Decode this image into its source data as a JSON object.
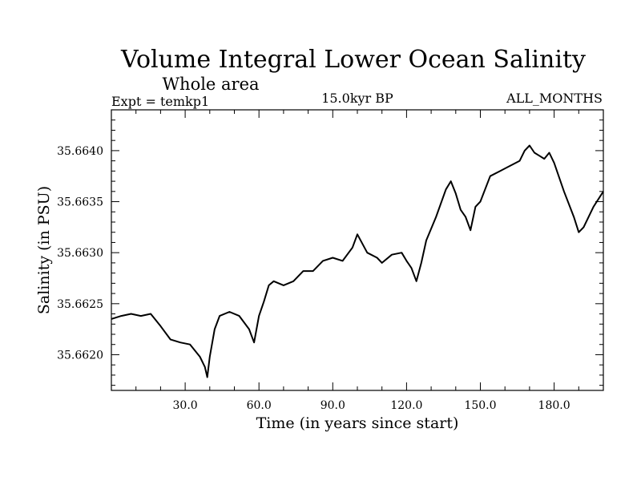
{
  "chart_data": {
    "type": "line",
    "title": "Volume Integral Lower Ocean Salinity",
    "subtitle": "Whole area",
    "experiment_label": "Expt = temkp1",
    "period_label": "15.0kyr BP",
    "months_label": "ALL_MONTHS",
    "xlabel": "Time (in years since start)",
    "ylabel": "Salinity (in PSU)",
    "xlim": [
      0,
      200
    ],
    "ylim": [
      35.66165,
      35.6644
    ],
    "xticks": [
      30,
      60,
      90,
      120,
      150,
      180
    ],
    "xtick_labels": [
      "30.0",
      "60.0",
      "90.0",
      "120.0",
      "150.0",
      "180.0"
    ],
    "yticks": [
      35.662,
      35.6625,
      35.663,
      35.6635,
      35.664
    ],
    "ytick_labels": [
      "35.6620",
      "35.6625",
      "35.6630",
      "35.6635",
      "35.6640"
    ],
    "grid": false,
    "series": [
      {
        "name": "Salinity",
        "color": "#000000",
        "x": [
          0,
          4,
          8,
          12,
          16,
          20,
          24,
          28,
          32,
          36,
          38,
          39,
          40,
          42,
          44,
          48,
          52,
          56,
          58,
          60,
          62,
          64,
          66,
          70,
          74,
          78,
          82,
          86,
          90,
          94,
          98,
          100,
          104,
          108,
          110,
          114,
          118,
          120,
          122,
          124,
          126,
          128,
          132,
          136,
          138,
          140,
          142,
          144,
          146,
          148,
          150,
          154,
          158,
          162,
          166,
          168,
          170,
          172,
          174,
          176,
          178,
          180,
          184,
          188,
          190,
          192,
          196,
          200
        ],
        "values": [
          35.66235,
          35.66238,
          35.6624,
          35.66238,
          35.6624,
          35.66228,
          35.66215,
          35.66212,
          35.6621,
          35.66198,
          35.66188,
          35.66178,
          35.66198,
          35.66225,
          35.66238,
          35.66242,
          35.66238,
          35.66225,
          35.66212,
          35.66238,
          35.66252,
          35.66268,
          35.66272,
          35.66268,
          35.66272,
          35.66282,
          35.66282,
          35.66292,
          35.66295,
          35.66292,
          35.66305,
          35.66318,
          35.663,
          35.66295,
          35.6629,
          35.66298,
          35.663,
          35.66292,
          35.66285,
          35.66272,
          35.6629,
          35.66312,
          35.66335,
          35.66362,
          35.6637,
          35.66358,
          35.66342,
          35.66335,
          35.66322,
          35.66345,
          35.6635,
          35.66375,
          35.6638,
          35.66385,
          35.6639,
          35.664,
          35.66405,
          35.66398,
          35.66395,
          35.66392,
          35.66398,
          35.66388,
          35.6636,
          35.66335,
          35.6632,
          35.66325,
          35.66345,
          35.6636
        ]
      }
    ]
  }
}
